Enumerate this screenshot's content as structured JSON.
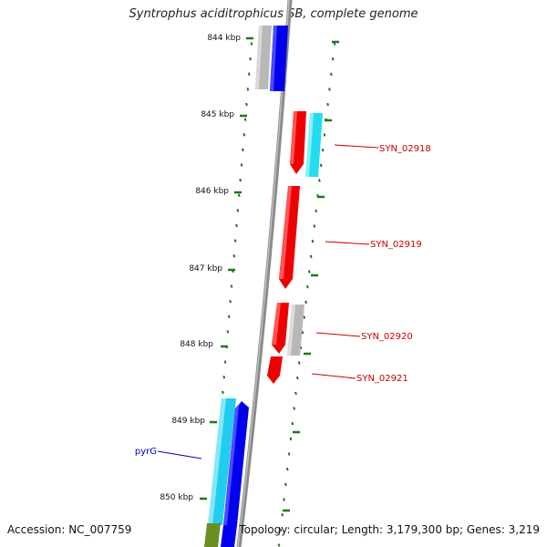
{
  "title": "Syntrophus aciditrophicus SB, complete genome",
  "footer": {
    "accession": "Accession: NC_007759",
    "summary": "Topology: circular; Length: 3,179,300 bp; Genes: 3,219"
  },
  "ticks": [
    {
      "label": "844 kbp"
    },
    {
      "label": "845 kbp"
    },
    {
      "label": "846 kbp"
    },
    {
      "label": "847 kbp"
    },
    {
      "label": "848 kbp"
    },
    {
      "label": "849 kbp"
    },
    {
      "label": "850 kbp"
    }
  ],
  "gene_labels": [
    {
      "label": "SYN_02918",
      "color": "#cc0000"
    },
    {
      "label": "SYN_02919",
      "color": "#cc0000"
    },
    {
      "label": "SYN_02920",
      "color": "#cc0000"
    },
    {
      "label": "SYN_02921",
      "color": "#cc0000"
    },
    {
      "label": "pyrG",
      "color": "#0000cc"
    }
  ],
  "colors": {
    "backbone": "#8a8a8a",
    "forward_gene": "#ee0000",
    "cds_blue": "#0000ee",
    "cyan": "#22ddee",
    "grey_gene": "#b8b8b8",
    "olive": "#6b8e23",
    "tick": "#1a7a1a"
  }
}
